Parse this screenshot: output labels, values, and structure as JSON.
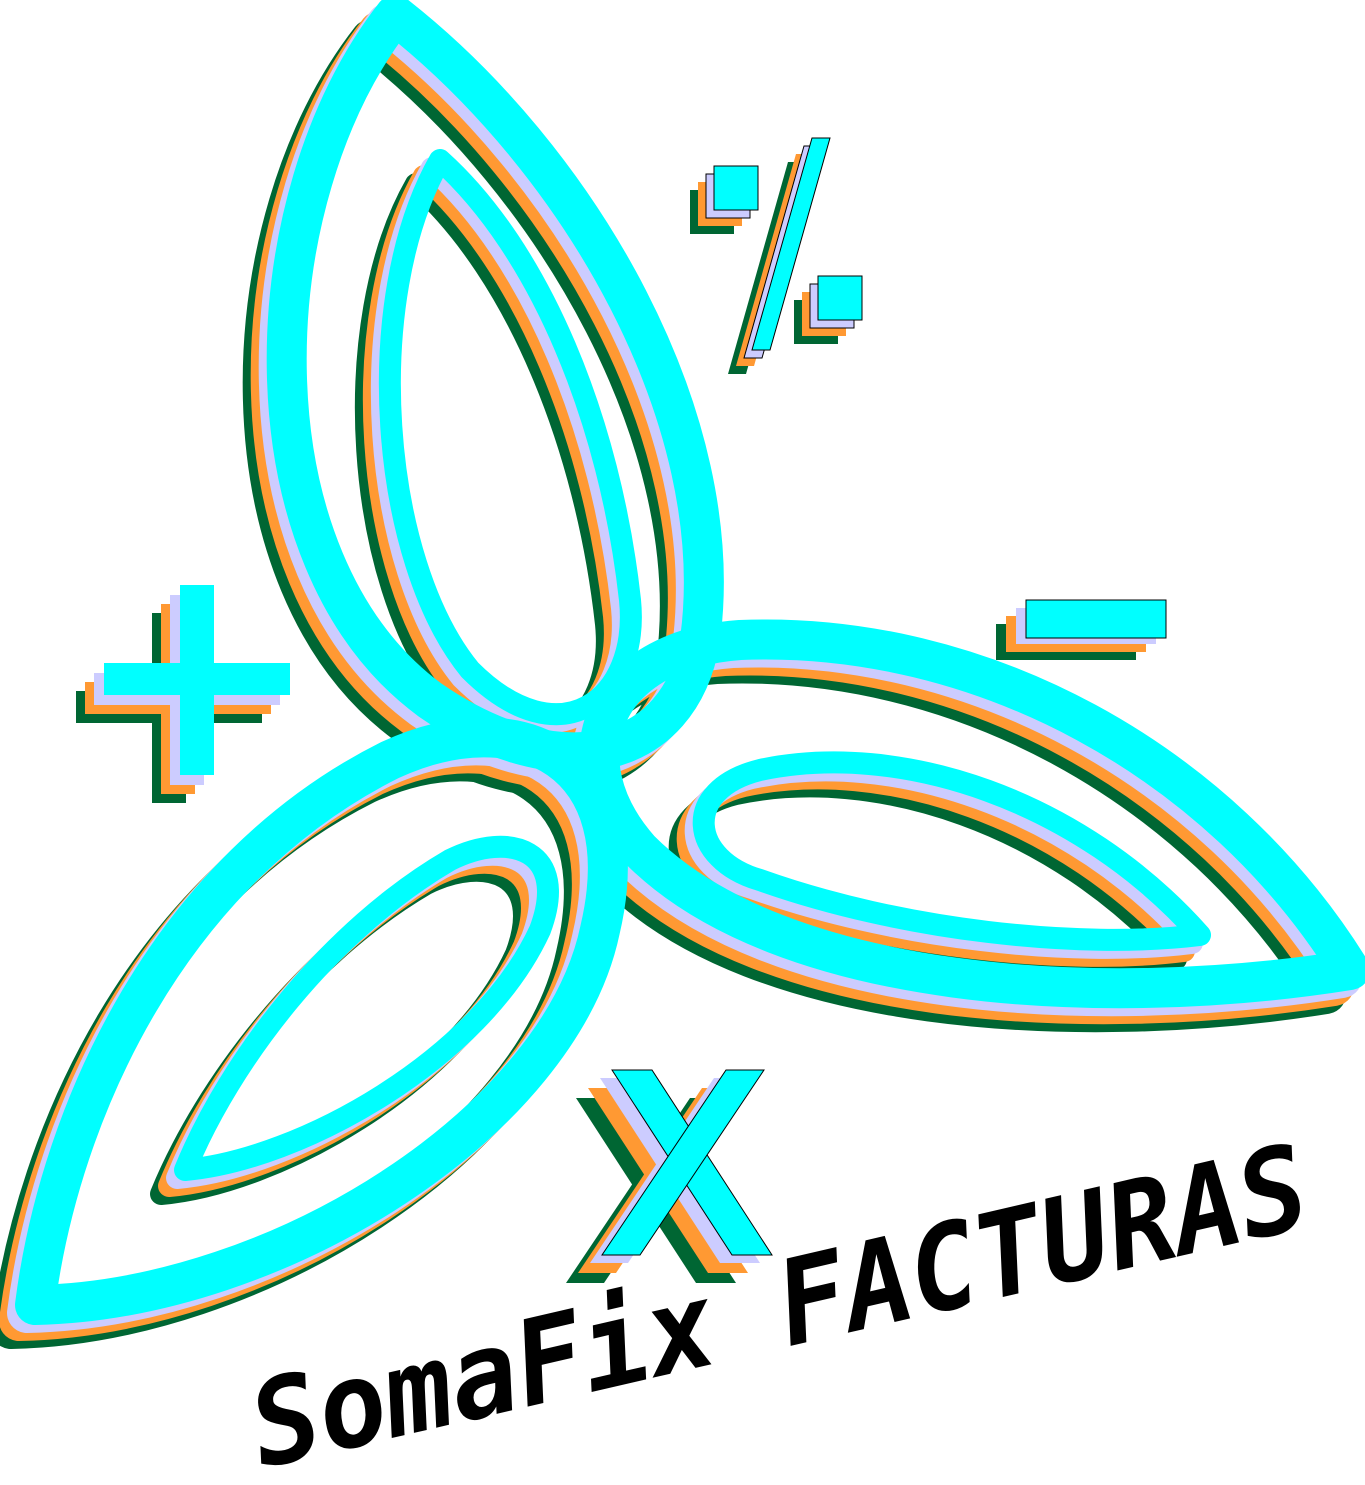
{
  "logo": {
    "brand_text": "SomaFix FACTURAS",
    "symbols": {
      "plus": "+",
      "minus": "−",
      "percent": "%",
      "times": "X"
    },
    "colors": {
      "primary": "#00ffff",
      "layer_lavender": "#ccccff",
      "layer_orange": "#ff9933",
      "layer_green": "#006633",
      "outline": "#000000",
      "text": "#000000",
      "background": "#ffffff"
    }
  }
}
